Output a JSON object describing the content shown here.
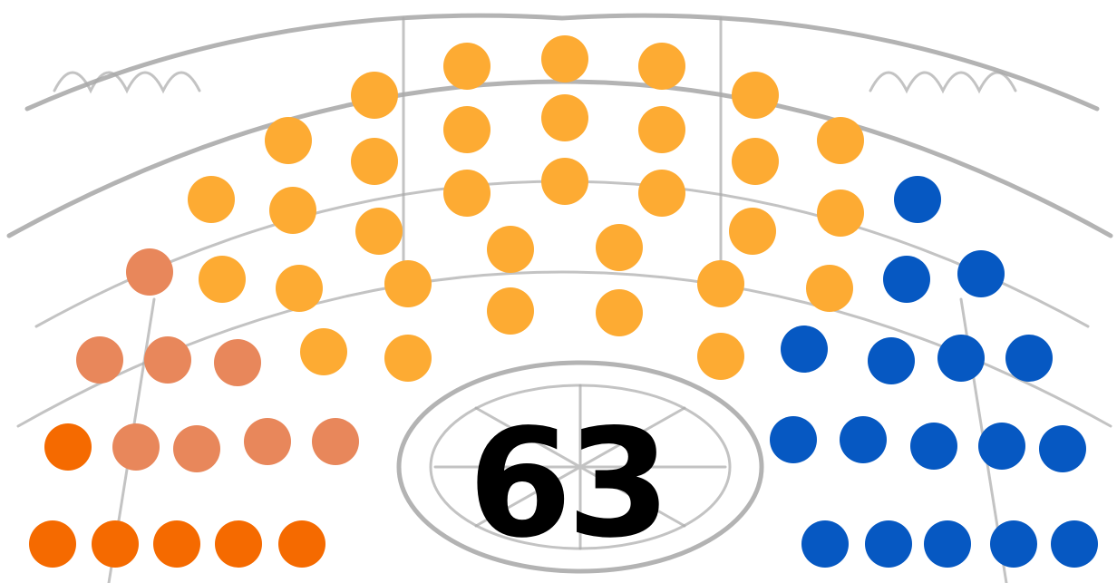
{
  "seat_total": "63"
}
